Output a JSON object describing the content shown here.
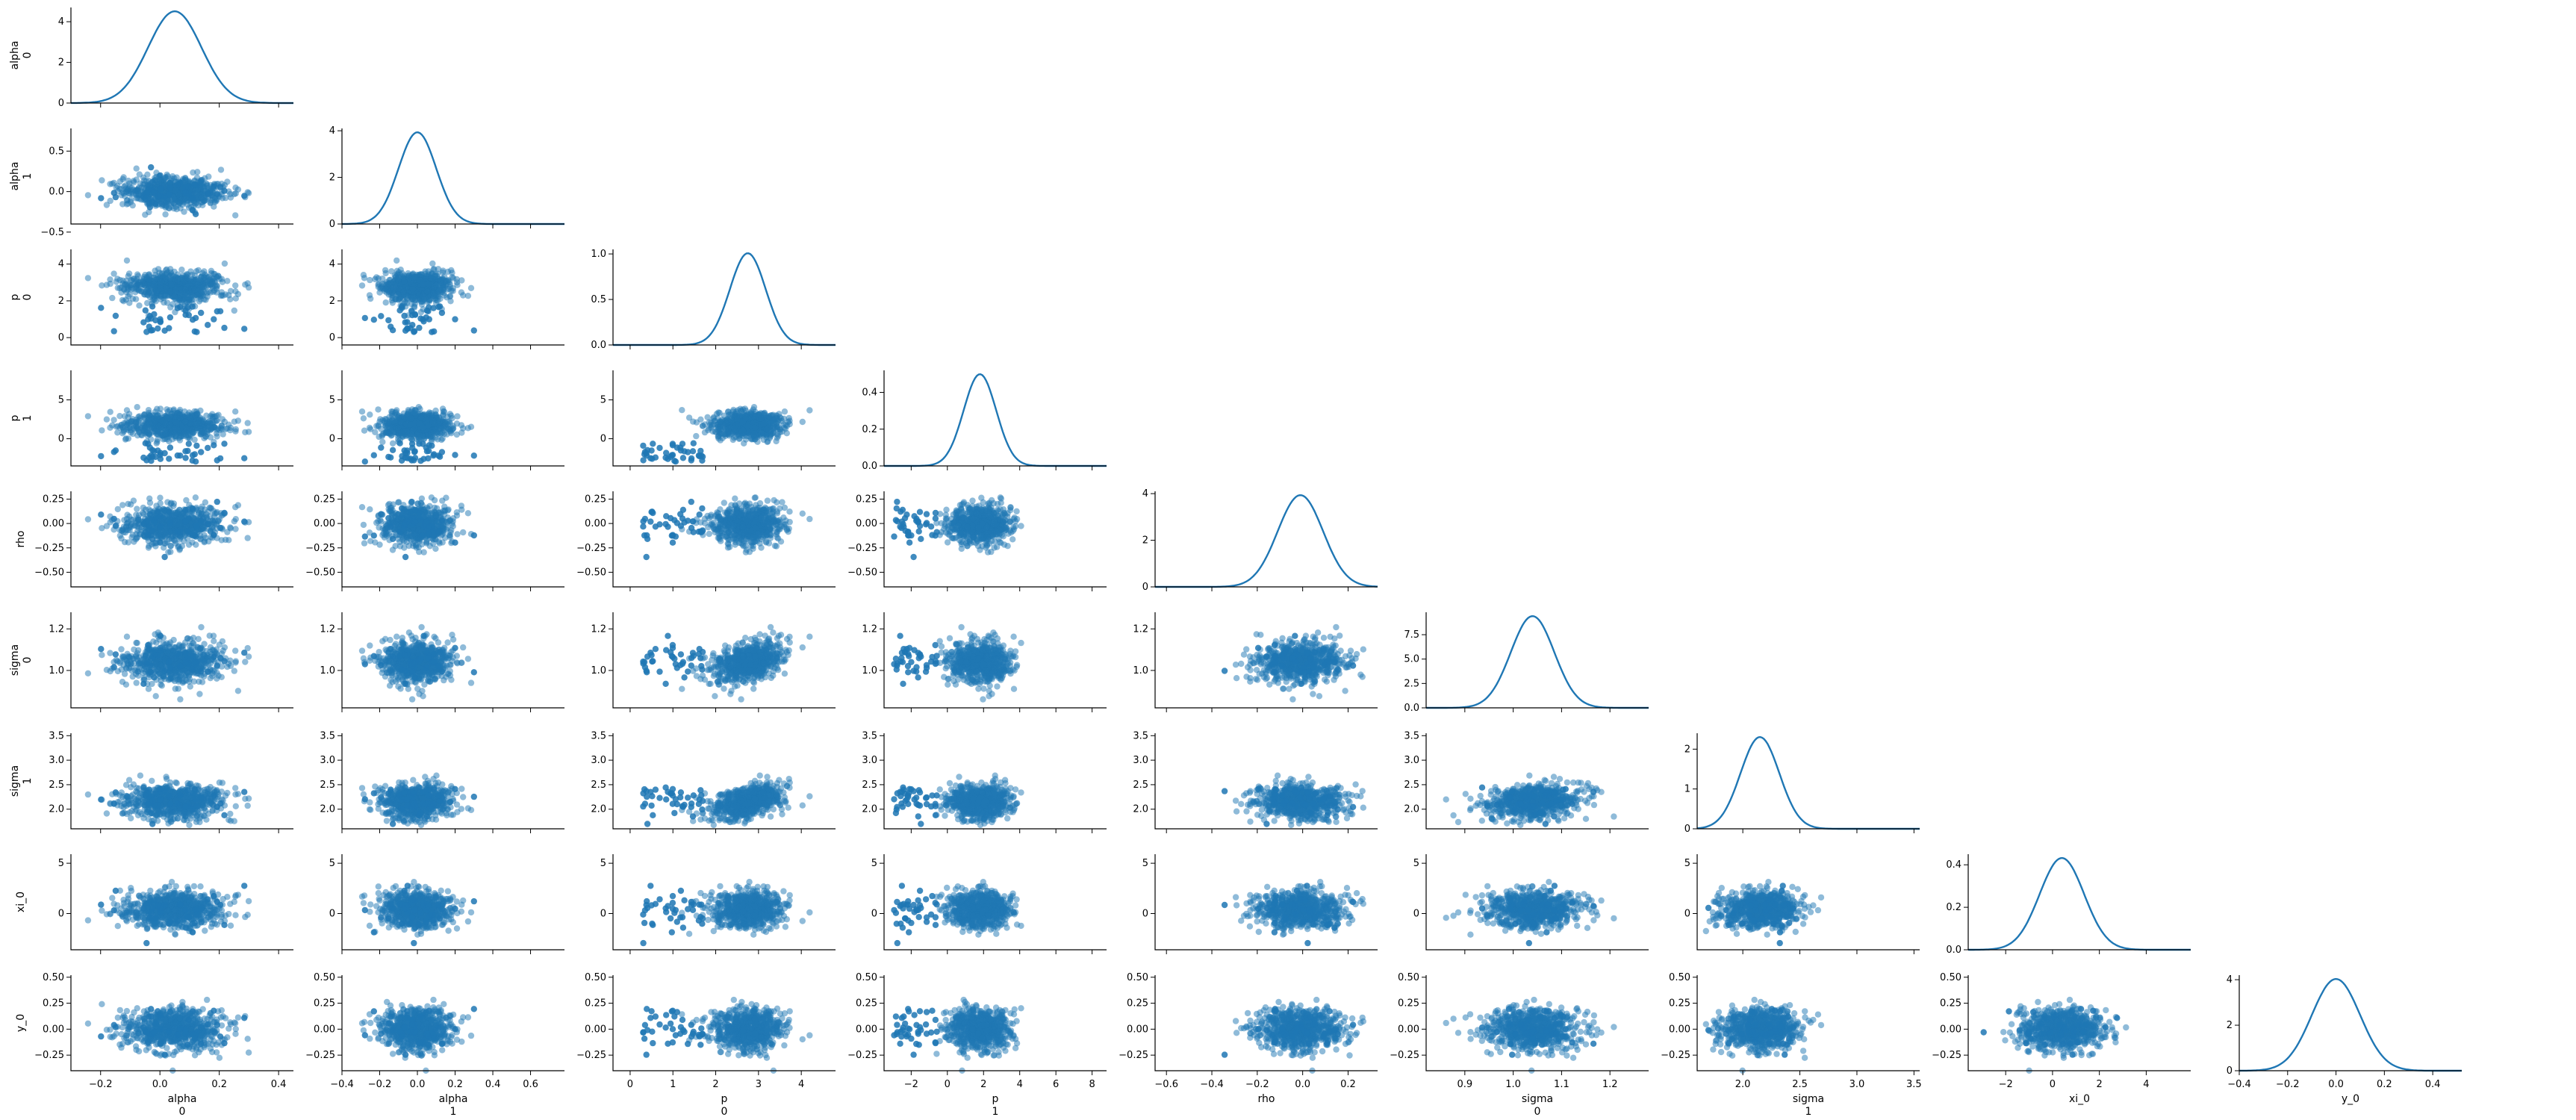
{
  "chart_data": {
    "type": "scatter",
    "kind": "pair-plot",
    "lower": "scatter",
    "diagonal": "kde",
    "grid": false,
    "legend": "none",
    "marker_color": "#1f77b4",
    "marker_alpha": 0.5,
    "variables": [
      {
        "id": "alpha_0",
        "name": "alpha",
        "index": "0",
        "range": [
          -0.3,
          0.45
        ],
        "xticks": [
          -0.2,
          0.0,
          0.2,
          0.4
        ],
        "yticks": [],
        "mean": 0.05,
        "sd": 0.09,
        "xtick_labels": [
          "−0.2",
          "0.0",
          "0.2",
          "0.4"
        ],
        "ytick_labels": []
      },
      {
        "id": "alpha_1",
        "name": "alpha",
        "index": "1",
        "range": [
          -0.4,
          0.78
        ],
        "xticks": [
          -0.4,
          -0.2,
          0.0,
          0.2,
          0.4,
          0.6
        ],
        "yticks": [
          -0.5,
          0.0,
          0.5
        ],
        "mean": 0.0,
        "sd": 0.1,
        "xtick_labels": [
          "−0.4",
          "−0.2",
          "0.0",
          "0.2",
          "0.4",
          "0.6"
        ],
        "ytick_labels": [
          "−0.5",
          "0.0",
          "0.5"
        ]
      },
      {
        "id": "p_0",
        "name": "p",
        "index": "0",
        "range": [
          -0.4,
          4.8
        ],
        "xticks": [
          0,
          1,
          2,
          3,
          4
        ],
        "yticks": [
          0,
          2,
          4
        ],
        "mean": 2.75,
        "sd": 0.42,
        "xtick_labels": [
          "0",
          "1",
          "2",
          "3",
          "4"
        ],
        "ytick_labels": [
          "0",
          "2",
          "4"
        ]
      },
      {
        "id": "p_1",
        "name": "p",
        "index": "1",
        "range": [
          -3.5,
          8.8
        ],
        "xticks": [
          -2,
          0,
          2,
          4,
          6,
          8
        ],
        "yticks": [
          0,
          5
        ],
        "mean": 1.8,
        "sd": 0.9,
        "xtick_labels": [
          "−2",
          "0",
          "2",
          "4",
          "6",
          "8"
        ],
        "ytick_labels": [
          "0",
          "5"
        ]
      },
      {
        "id": "rho",
        "name": "rho",
        "index": "",
        "range": [
          -0.65,
          0.33
        ],
        "xticks": [
          -0.6,
          -0.4,
          -0.2,
          0.0,
          0.2
        ],
        "yticks": [
          -0.5,
          -0.25,
          0.0,
          0.25
        ],
        "mean": -0.01,
        "sd": 0.1,
        "xtick_labels": [
          "−0.6",
          "−0.4",
          "−0.2",
          "0.0",
          "0.2"
        ],
        "ytick_labels": [
          "−0.50",
          "−0.25",
          "0.00",
          "0.25"
        ]
      },
      {
        "id": "sigma_0",
        "name": "sigma",
        "index": "0",
        "range": [
          0.82,
          1.28
        ],
        "xticks": [
          0.9,
          1.0,
          1.1,
          1.2
        ],
        "yticks": [
          1.0,
          1.2
        ],
        "mean": 1.04,
        "sd": 0.045,
        "xtick_labels": [
          "0.9",
          "1.0",
          "1.1",
          "1.2"
        ],
        "ytick_labels": [
          "1.0",
          "1.2"
        ]
      },
      {
        "id": "sigma_1",
        "name": "sigma",
        "index": "1",
        "range": [
          1.6,
          3.55
        ],
        "xticks": [
          2.0,
          2.5,
          3.0,
          3.5
        ],
        "yticks": [
          2.0,
          2.5,
          3.0,
          3.5
        ],
        "mean": 2.15,
        "sd": 0.17,
        "xtick_labels": [
          "2.0",
          "2.5",
          "3.0",
          "3.5"
        ],
        "ytick_labels": [
          "2.0",
          "2.5",
          "3.0",
          "3.5"
        ]
      },
      {
        "id": "xi_0",
        "name": "xi_0",
        "index": "",
        "range": [
          -3.6,
          5.9
        ],
        "xticks": [
          -2,
          0,
          2,
          4
        ],
        "yticks": [
          0,
          5
        ],
        "mean": 0.4,
        "sd": 0.95,
        "xtick_labels": [
          "−2",
          "0",
          "2",
          "4"
        ],
        "ytick_labels": [
          "0",
          "5"
        ]
      },
      {
        "id": "y_0",
        "name": "y_0",
        "index": "",
        "range": [
          -0.4,
          0.52
        ],
        "xticks": [
          -0.4,
          -0.2,
          0.0,
          0.2,
          0.4
        ],
        "yticks": [
          -0.25,
          0.0,
          0.25,
          0.5
        ],
        "mean": 0.0,
        "sd": 0.1,
        "xtick_labels": [
          "−0.4",
          "−0.2",
          "0.0",
          "0.2",
          "0.4"
        ],
        "ytick_labels": [
          "−0.25",
          "0.00",
          "0.25",
          "0.50"
        ]
      }
    ],
    "diagonal_ylim": [
      {
        "ylim": [
          0,
          4.7
        ],
        "yticks": [
          0,
          2,
          4
        ],
        "ytick_labels": [
          "0",
          "2",
          "4"
        ]
      },
      {
        "ylim": [
          0,
          4.1
        ],
        "yticks": [
          0,
          2,
          4
        ],
        "ytick_labels": [
          "0",
          "2",
          "4"
        ]
      },
      {
        "ylim": [
          0,
          1.05
        ],
        "yticks": [
          0.0,
          0.5,
          1.0
        ],
        "ytick_labels": [
          "0.0",
          "0.5",
          "1.0"
        ]
      },
      {
        "ylim": [
          0,
          0.52
        ],
        "yticks": [
          0.0,
          0.2,
          0.4
        ],
        "ytick_labels": [
          "0.0",
          "0.2",
          "0.4"
        ]
      },
      {
        "ylim": [
          0,
          4.1
        ],
        "yticks": [
          0,
          2,
          4
        ],
        "ytick_labels": [
          "0",
          "2",
          "4"
        ]
      },
      {
        "ylim": [
          0,
          9.8
        ],
        "yticks": [
          0.0,
          2.5,
          5.0,
          7.5
        ],
        "ytick_labels": [
          "0.0",
          "2.5",
          "5.0",
          "7.5"
        ]
      },
      {
        "ylim": [
          0,
          2.4
        ],
        "yticks": [
          0,
          1,
          2
        ],
        "ytick_labels": [
          "0",
          "1",
          "2"
        ]
      },
      {
        "ylim": [
          0,
          0.45
        ],
        "yticks": [
          0.0,
          0.2,
          0.4
        ],
        "ytick_labels": [
          "0.0",
          "0.2",
          "0.4"
        ]
      },
      {
        "ylim": [
          0,
          4.2
        ],
        "yticks": [
          0,
          2,
          4
        ],
        "ytick_labels": [
          "0",
          "2",
          "4"
        ]
      }
    ]
  }
}
